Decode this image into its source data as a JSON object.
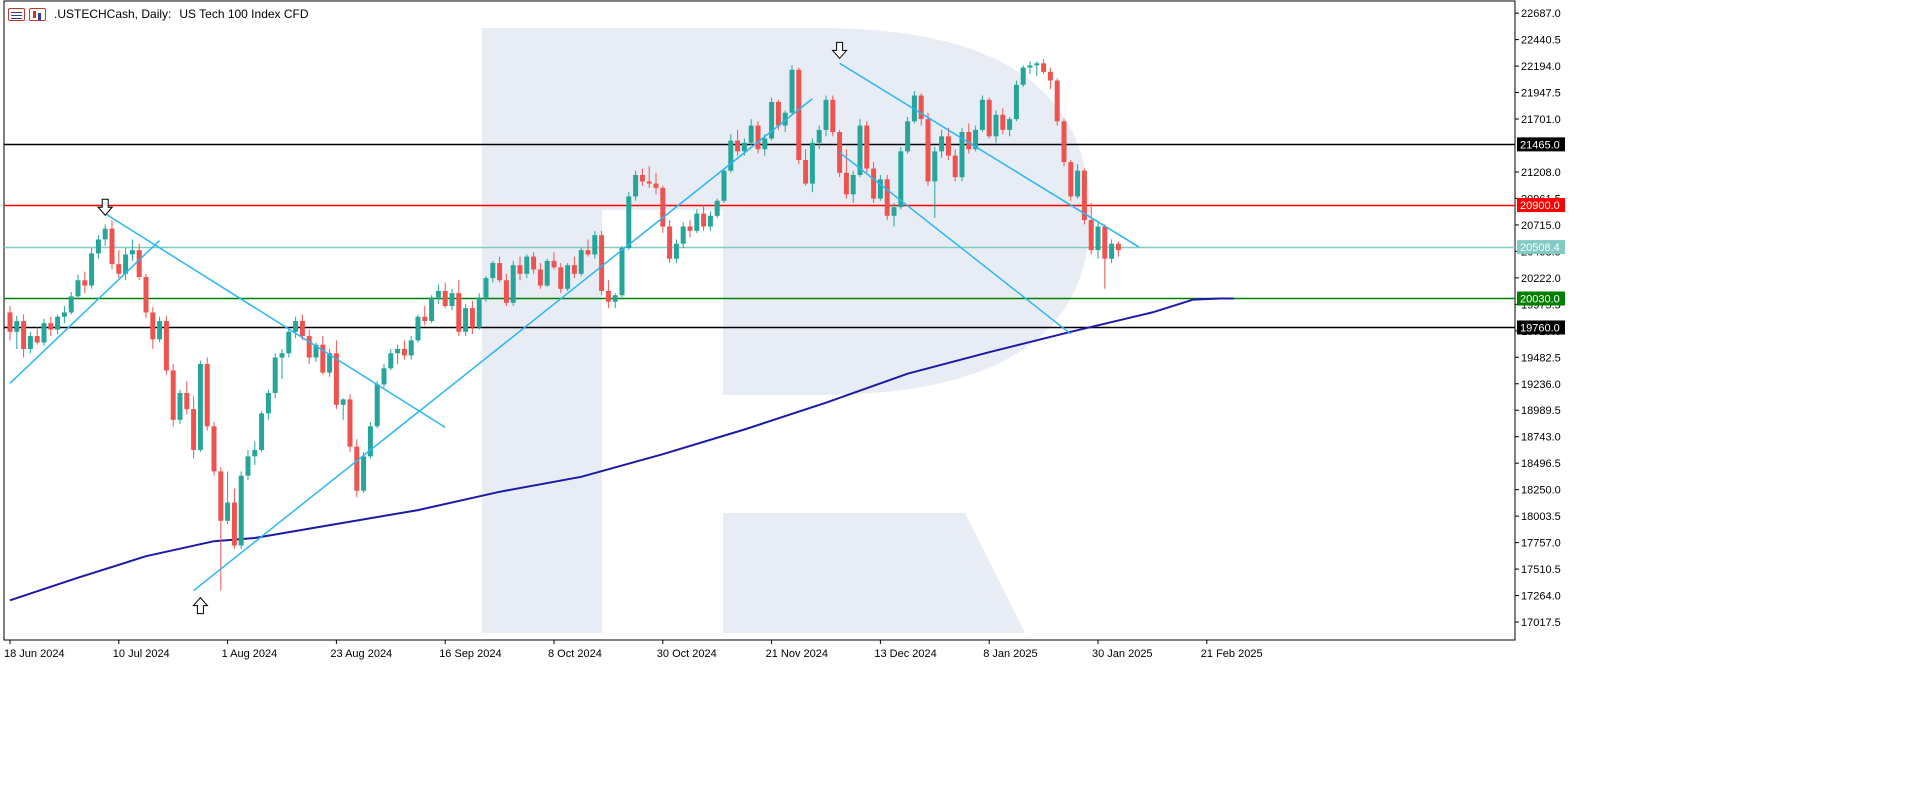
{
  "header": {
    "symbol": ".USTECHCash, Daily:",
    "description": "US Tech 100 Index CFD",
    "icons": [
      "chart-type-icon",
      "alt-chart-icon"
    ]
  },
  "colors": {
    "background": "#ffffff",
    "frame": "#000000",
    "bull": "#26a69a",
    "bear": "#ef5350",
    "trendline": "#29b6f6",
    "moving_average": "#1a1aa6",
    "resistance_black": "#000000",
    "resistance_red": "#ff0000",
    "current_price": "#80cbc4",
    "support_green": "#008000",
    "watermark": "#e8edf5"
  },
  "chart_data": {
    "type": "candlestick",
    "title": ".USTECHCash, Daily: US Tech 100 Index CFD",
    "xlabel": "",
    "ylabel": "",
    "ylim": [
      16850,
      22800
    ],
    "grid": false,
    "y_ticks": [
      "22687.0",
      "22440.5",
      "22194.0",
      "21947.5",
      "21701.0",
      "21208.0",
      "20961.5",
      "20715.0",
      "20468.5",
      "20222.0",
      "19975.5",
      "19729.0",
      "19482.5",
      "19236.0",
      "18989.5",
      "18743.0",
      "18496.5",
      "18250.0",
      "18003.5",
      "17757.0",
      "17510.5",
      "17264.0",
      "17017.5"
    ],
    "x_ticks": [
      {
        "label": "18 Jun 2024",
        "index": 0
      },
      {
        "label": "10 Jul 2024",
        "index": 16
      },
      {
        "label": "1 Aug 2024",
        "index": 32
      },
      {
        "label": "23 Aug 2024",
        "index": 48
      },
      {
        "label": "16 Sep 2024",
        "index": 64
      },
      {
        "label": "8 Oct 2024",
        "index": 80
      },
      {
        "label": "30 Oct 2024",
        "index": 96
      },
      {
        "label": "21 Nov 2024",
        "index": 112
      },
      {
        "label": "13 Dec 2024",
        "index": 128
      },
      {
        "label": "8 Jan 2025",
        "index": 144
      },
      {
        "label": "30 Jan 2025",
        "index": 160
      },
      {
        "label": "21 Feb 2025",
        "index": 176
      }
    ],
    "horizontal_levels": [
      {
        "value": 21465.0,
        "label": "21465.0",
        "color": "#000000",
        "label_text_color": "#ffffff"
      },
      {
        "value": 20900.0,
        "label": "20900.0",
        "color": "#ff0000",
        "label_text_color": "#ffffff"
      },
      {
        "value": 20508.4,
        "label": "20508.4",
        "color": "#80cbc4",
        "label_text_color": "#ffffff"
      },
      {
        "value": 20030.0,
        "label": "20030.0",
        "color": "#008000",
        "label_text_color": "#ffffff"
      },
      {
        "value": 19760.0,
        "label": "19760.0",
        "color": "#000000",
        "label_text_color": "#ffffff"
      }
    ],
    "candles": {
      "fields": [
        "open",
        "high",
        "low",
        "close"
      ],
      "start_date": "2024-06-18",
      "interval": "1 trading day",
      "values": [
        [
          19900,
          19960,
          19640,
          19720
        ],
        [
          19720,
          19870,
          19560,
          19820
        ],
        [
          19820,
          19880,
          19480,
          19560
        ],
        [
          19560,
          19720,
          19520,
          19680
        ],
        [
          19680,
          19760,
          19600,
          19620
        ],
        [
          19620,
          19840,
          19590,
          19800
        ],
        [
          19800,
          19860,
          19680,
          19740
        ],
        [
          19740,
          19880,
          19700,
          19860
        ],
        [
          19860,
          19960,
          19800,
          19900
        ],
        [
          19900,
          20090,
          19880,
          20050
        ],
        [
          20050,
          20250,
          20020,
          20200
        ],
        [
          20200,
          20280,
          20080,
          20150
        ],
        [
          20150,
          20500,
          20120,
          20450
        ],
        [
          20450,
          20620,
          20400,
          20580
        ],
        [
          20580,
          20720,
          20520,
          20680
        ],
        [
          20680,
          20760,
          20300,
          20350
        ],
        [
          20350,
          20480,
          20220,
          20260
        ],
        [
          20260,
          20500,
          20200,
          20440
        ],
        [
          20440,
          20580,
          20380,
          20480
        ],
        [
          20480,
          20540,
          20200,
          20230
        ],
        [
          20230,
          20260,
          19850,
          19900
        ],
        [
          19900,
          19950,
          19560,
          19650
        ],
        [
          19650,
          19860,
          19620,
          19820
        ],
        [
          19820,
          19870,
          19320,
          19360
        ],
        [
          19360,
          19420,
          18840,
          18900
        ],
        [
          18900,
          19180,
          18860,
          19150
        ],
        [
          19150,
          19260,
          18950,
          19000
        ],
        [
          19000,
          19120,
          18540,
          18620
        ],
        [
          18620,
          19450,
          18600,
          19420
        ],
        [
          19420,
          19480,
          18800,
          18840
        ],
        [
          18840,
          18880,
          18380,
          18420
        ],
        [
          18420,
          18460,
          17310,
          17960
        ],
        [
          17960,
          18420,
          17930,
          18130
        ],
        [
          18130,
          18260,
          17700,
          17730
        ],
        [
          17730,
          18420,
          17700,
          18380
        ],
        [
          18380,
          18620,
          18340,
          18560
        ],
        [
          18560,
          18700,
          18480,
          18620
        ],
        [
          18620,
          18980,
          18600,
          18960
        ],
        [
          18960,
          19180,
          18900,
          19150
        ],
        [
          19150,
          19520,
          19100,
          19480
        ],
        [
          19480,
          19560,
          19280,
          19520
        ],
        [
          19520,
          19760,
          19480,
          19720
        ],
        [
          19720,
          19860,
          19660,
          19820
        ],
        [
          19820,
          19880,
          19640,
          19680
        ],
        [
          19680,
          19740,
          19420,
          19480
        ],
        [
          19480,
          19620,
          19440,
          19600
        ],
        [
          19600,
          19680,
          19320,
          19340
        ],
        [
          19340,
          19560,
          19300,
          19520
        ],
        [
          19520,
          19640,
          19000,
          19040
        ],
        [
          19040,
          19100,
          18900,
          19090
        ],
        [
          19090,
          19140,
          18600,
          18650
        ],
        [
          18650,
          18720,
          18180,
          18240
        ],
        [
          18240,
          18600,
          18220,
          18560
        ],
        [
          18560,
          18880,
          18540,
          18840
        ],
        [
          18840,
          19260,
          18820,
          19230
        ],
        [
          19230,
          19420,
          19200,
          19380
        ],
        [
          19380,
          19560,
          19360,
          19520
        ],
        [
          19520,
          19600,
          19420,
          19560
        ],
        [
          19560,
          19640,
          19460,
          19500
        ],
        [
          19500,
          19680,
          19460,
          19640
        ],
        [
          19640,
          19880,
          19620,
          19860
        ],
        [
          19860,
          19960,
          19780,
          19820
        ],
        [
          19820,
          20060,
          19800,
          20040
        ],
        [
          20040,
          20160,
          19980,
          20100
        ],
        [
          20100,
          20180,
          19940,
          19960
        ],
        [
          19960,
          20120,
          19920,
          20080
        ],
        [
          20080,
          20200,
          19680,
          19720
        ],
        [
          19720,
          19980,
          19680,
          19940
        ],
        [
          19940,
          20010,
          19700,
          19760
        ],
        [
          19760,
          20080,
          19740,
          20040
        ],
        [
          20040,
          20240,
          20000,
          20220
        ],
        [
          20220,
          20380,
          20180,
          20360
        ],
        [
          20360,
          20420,
          20180,
          20200
        ],
        [
          20200,
          20260,
          19960,
          19990
        ],
        [
          19990,
          20380,
          19960,
          20340
        ],
        [
          20340,
          20420,
          20200,
          20260
        ],
        [
          20260,
          20440,
          20220,
          20420
        ],
        [
          20420,
          20460,
          20260,
          20300
        ],
        [
          20300,
          20360,
          20120,
          20150
        ],
        [
          20150,
          20400,
          20140,
          20380
        ],
        [
          20380,
          20460,
          20300,
          20320
        ],
        [
          20320,
          20360,
          20080,
          20120
        ],
        [
          20120,
          20360,
          20100,
          20340
        ],
        [
          20340,
          20420,
          20220,
          20260
        ],
        [
          20260,
          20500,
          20240,
          20480
        ],
        [
          20480,
          20580,
          20420,
          20440
        ],
        [
          20440,
          20660,
          20400,
          20620
        ],
        [
          20620,
          20660,
          20060,
          20100
        ],
        [
          20100,
          20200,
          19940,
          20000
        ],
        [
          20000,
          20080,
          19940,
          20060
        ],
        [
          20060,
          20520,
          20040,
          20500
        ],
        [
          20500,
          21020,
          20480,
          20980
        ],
        [
          20980,
          21220,
          20940,
          21180
        ],
        [
          21180,
          21240,
          21080,
          21120
        ],
        [
          21120,
          21260,
          21060,
          21100
        ],
        [
          21100,
          21200,
          21000,
          21060
        ],
        [
          21060,
          21080,
          20640,
          20700
        ],
        [
          20700,
          20760,
          20360,
          20400
        ],
        [
          20400,
          20580,
          20360,
          20540
        ],
        [
          20540,
          20740,
          20500,
          20700
        ],
        [
          20700,
          20760,
          20600,
          20660
        ],
        [
          20660,
          20860,
          20640,
          20820
        ],
        [
          20820,
          20900,
          20660,
          20700
        ],
        [
          20700,
          20840,
          20660,
          20800
        ],
        [
          20800,
          20960,
          20780,
          20940
        ],
        [
          20940,
          21240,
          20920,
          21220
        ],
        [
          21220,
          21560,
          21200,
          21500
        ],
        [
          21500,
          21600,
          21360,
          21400
        ],
        [
          21400,
          21520,
          21360,
          21480
        ],
        [
          21480,
          21700,
          21460,
          21640
        ],
        [
          21640,
          21680,
          21380,
          21420
        ],
        [
          21420,
          21560,
          21360,
          21520
        ],
        [
          21520,
          21900,
          21500,
          21860
        ],
        [
          21860,
          21880,
          21600,
          21640
        ],
        [
          21640,
          21780,
          21580,
          21760
        ],
        [
          21760,
          22200,
          21740,
          22160
        ],
        [
          22160,
          22180,
          21280,
          21320
        ],
        [
          21320,
          21420,
          21080,
          21100
        ],
        [
          21100,
          21520,
          21020,
          21480
        ],
        [
          21480,
          21640,
          21420,
          21600
        ],
        [
          21600,
          21920,
          21540,
          21880
        ],
        [
          21880,
          21920,
          21540,
          21580
        ],
        [
          21580,
          21600,
          21160,
          21200
        ],
        [
          21200,
          21420,
          20960,
          21000
        ],
        [
          21000,
          21220,
          20920,
          21180
        ],
        [
          21180,
          21700,
          21160,
          21640
        ],
        [
          21640,
          21680,
          21200,
          21240
        ],
        [
          21240,
          21300,
          20920,
          20960
        ],
        [
          20960,
          21180,
          20940,
          21140
        ],
        [
          21140,
          21180,
          20760,
          20800
        ],
        [
          20800,
          20920,
          20700,
          20880
        ],
        [
          20880,
          21440,
          20860,
          21400
        ],
        [
          21400,
          21720,
          21380,
          21680
        ],
        [
          21680,
          21960,
          21660,
          21920
        ],
        [
          21920,
          21940,
          21640,
          21700
        ],
        [
          21700,
          21760,
          21080,
          21120
        ],
        [
          21120,
          21440,
          20780,
          21400
        ],
        [
          21400,
          21600,
          21340,
          21540
        ],
        [
          21540,
          21620,
          21320,
          21360
        ],
        [
          21360,
          21420,
          21120,
          21160
        ],
        [
          21160,
          21620,
          21120,
          21580
        ],
        [
          21580,
          21660,
          21380,
          21420
        ],
        [
          21420,
          21640,
          21400,
          21600
        ],
        [
          21600,
          21920,
          21580,
          21880
        ],
        [
          21880,
          21900,
          21520,
          21540
        ],
        [
          21540,
          21780,
          21480,
          21740
        ],
        [
          21740,
          21800,
          21560,
          21600
        ],
        [
          21600,
          21720,
          21540,
          21700
        ],
        [
          21700,
          22060,
          21680,
          22020
        ],
        [
          22020,
          22200,
          22000,
          22180
        ],
        [
          22180,
          22240,
          22120,
          22200
        ],
        [
          22200,
          22240,
          22100,
          22220
        ],
        [
          22220,
          22260,
          22120,
          22140
        ],
        [
          22140,
          22180,
          21980,
          22060
        ],
        [
          22060,
          22080,
          21640,
          21680
        ],
        [
          21680,
          21700,
          21260,
          21300
        ],
        [
          21300,
          21320,
          20940,
          20980
        ],
        [
          20980,
          21280,
          20960,
          21220
        ],
        [
          21220,
          21240,
          20720,
          20760
        ],
        [
          20760,
          20920,
          20440,
          20480
        ],
        [
          20480,
          20740,
          20400,
          20700
        ],
        [
          20700,
          20720,
          20120,
          20400
        ],
        [
          20400,
          20580,
          20360,
          20540
        ],
        [
          20540,
          20560,
          20420,
          20480
        ]
      ]
    },
    "moving_average": {
      "name": "",
      "values": [
        [
          0,
          17220
        ],
        [
          10,
          17430
        ],
        [
          20,
          17630
        ],
        [
          30,
          17770
        ],
        [
          36,
          17800
        ],
        [
          48,
          17930
        ],
        [
          60,
          18060
        ],
        [
          72,
          18230
        ],
        [
          84,
          18370
        ],
        [
          96,
          18580
        ],
        [
          108,
          18810
        ],
        [
          120,
          19060
        ],
        [
          132,
          19330
        ],
        [
          144,
          19530
        ],
        [
          156,
          19720
        ],
        [
          168,
          19900
        ],
        [
          174,
          20020
        ],
        [
          178,
          20030
        ],
        [
          180,
          20030
        ]
      ]
    },
    "trendlines": [
      {
        "from": [
          0,
          19240
        ],
        "to": [
          22,
          20570
        ]
      },
      {
        "from": [
          14,
          20820
        ],
        "to": [
          64,
          18830
        ]
      },
      {
        "from": [
          27,
          17310
        ],
        "to": [
          118,
          21890
        ]
      },
      {
        "from": [
          122,
          22220
        ],
        "to": [
          166,
          20510
        ]
      },
      {
        "from": [
          122,
          21390
        ],
        "to": [
          156,
          19700
        ]
      }
    ],
    "arrows": [
      {
        "direction": "down",
        "at": [
          14,
          20880
        ]
      },
      {
        "direction": "down",
        "at": [
          122,
          22340
        ]
      },
      {
        "direction": "up",
        "at": [
          28,
          17170
        ]
      }
    ],
    "watermark": "R"
  }
}
